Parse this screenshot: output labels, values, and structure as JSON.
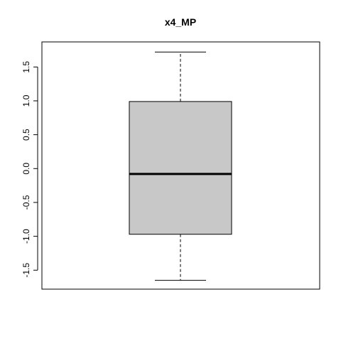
{
  "chart_data": {
    "type": "boxplot",
    "title": "x4_MP",
    "xlabel": "",
    "ylabel": "",
    "ylim": [
      -1.78,
      1.87
    ],
    "y_ticks": [
      -1.5,
      -1.0,
      -0.5,
      0.0,
      0.5,
      1.0,
      1.5
    ],
    "y_tick_labels": [
      "-1.5",
      "-1.0",
      "-0.5",
      "0.0",
      "0.5",
      "1.0",
      "1.5"
    ],
    "grid": false,
    "legend": "none",
    "boxes": [
      {
        "whisker_low": -1.65,
        "q1": -0.97,
        "median": -0.08,
        "q3": 0.99,
        "whisker_high": 1.72
      }
    ],
    "colors": {
      "box_fill": "#c8c8c8",
      "stroke": "#000000"
    }
  }
}
